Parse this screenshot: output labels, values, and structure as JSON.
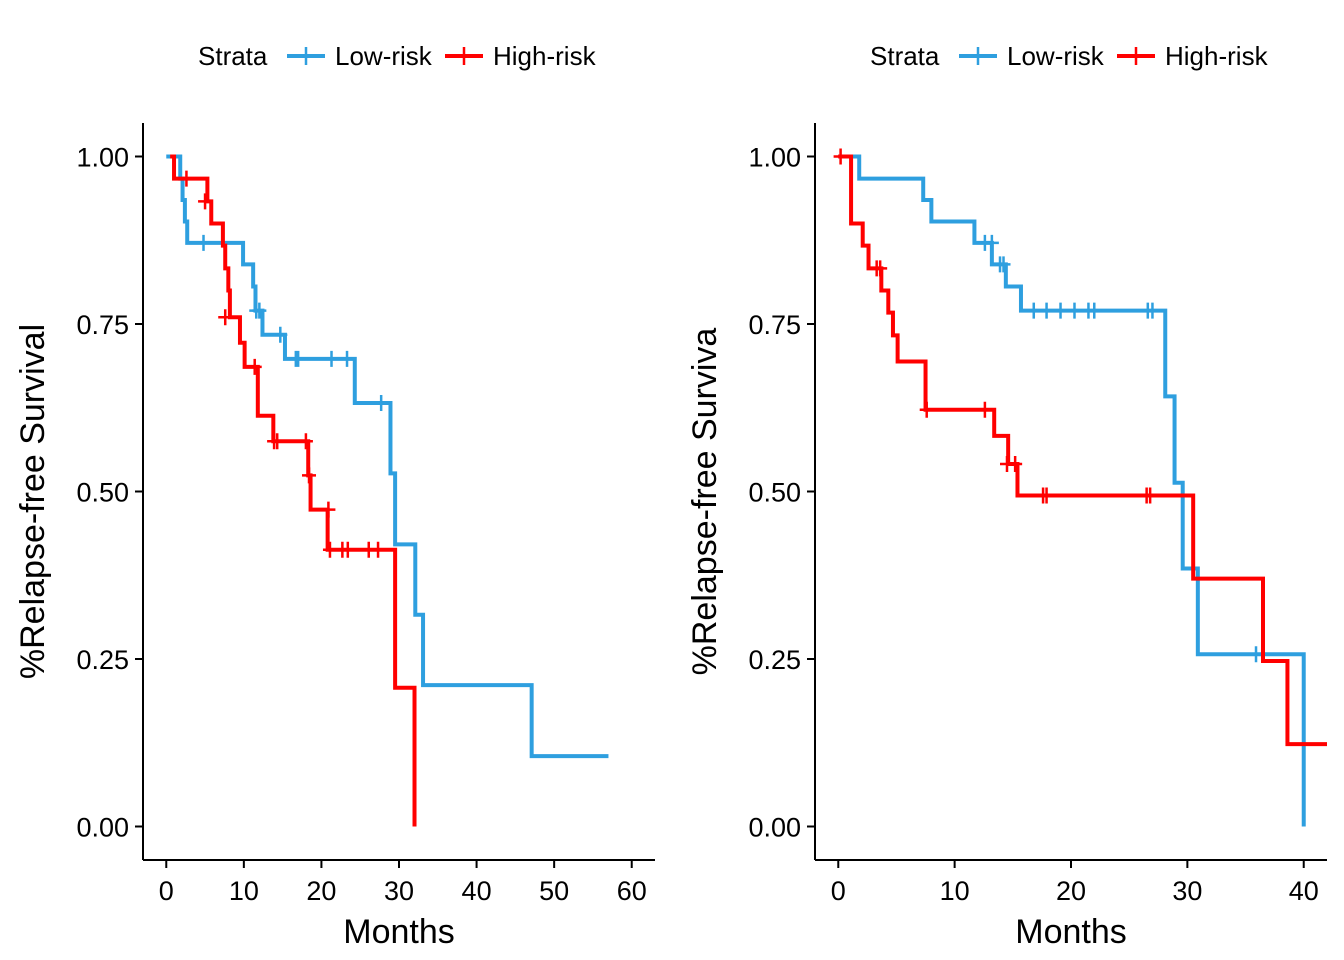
{
  "colors": {
    "low": "#2e9fdf",
    "high": "#ff0000"
  },
  "chart_data": [
    {
      "type": "line",
      "xlabel": "Months",
      "ylabel": "%Relapse-free Survival",
      "xlim": [
        -3,
        63
      ],
      "ylim": [
        -0.05,
        1.05
      ],
      "xticks": [
        "0",
        "10",
        "20",
        "30",
        "40",
        "50",
        "60"
      ],
      "yticks": [
        "0.00",
        "0.25",
        "0.50",
        "0.75",
        "1.00"
      ],
      "legend": {
        "title": "Strata",
        "position": "top",
        "labels": [
          "Low-risk",
          "High-risk"
        ]
      },
      "grid": false,
      "series": [
        {
          "name": "Low-risk",
          "steps": [
            [
              0,
              1.0
            ],
            [
              1.8,
              0.967
            ],
            [
              2.1,
              0.935
            ],
            [
              2.4,
              0.903
            ],
            [
              2.7,
              0.871
            ],
            [
              9.9,
              0.839
            ],
            [
              11.2,
              0.806
            ],
            [
              11.5,
              0.77
            ],
            [
              12.4,
              0.734
            ],
            [
              15.3,
              0.698
            ],
            [
              24.3,
              0.632
            ],
            [
              28.9,
              0.527
            ],
            [
              29.5,
              0.421
            ],
            [
              32.1,
              0.316
            ],
            [
              33.1,
              0.211
            ],
            [
              47.1,
              0.105
            ],
            [
              57.0,
              0.105
            ]
          ],
          "censor": [
            [
              4.8,
              0.871
            ],
            [
              11.6,
              0.77
            ],
            [
              12.0,
              0.77
            ],
            [
              14.7,
              0.734
            ],
            [
              16.7,
              0.698
            ],
            [
              17.0,
              0.698
            ],
            [
              21.3,
              0.698
            ],
            [
              23.3,
              0.698
            ],
            [
              27.7,
              0.632
            ]
          ]
        },
        {
          "name": "High-risk",
          "steps": [
            [
              0.5,
              1.0
            ],
            [
              1.0,
              0.967
            ],
            [
              5.3,
              0.933
            ],
            [
              5.8,
              0.9
            ],
            [
              7.3,
              0.867
            ],
            [
              7.6,
              0.833
            ],
            [
              8.0,
              0.8
            ],
            [
              8.2,
              0.76
            ],
            [
              9.5,
              0.722
            ],
            [
              10.1,
              0.686
            ],
            [
              11.8,
              0.613
            ],
            [
              13.8,
              0.575
            ],
            [
              18.3,
              0.524
            ],
            [
              18.6,
              0.473
            ],
            [
              20.8,
              0.413
            ],
            [
              29.5,
              0.207
            ],
            [
              32.0,
              0.0
            ]
          ],
          "censor": [
            [
              2.6,
              0.967
            ],
            [
              5.0,
              0.933
            ],
            [
              7.6,
              0.76
            ],
            [
              11.4,
              0.686
            ],
            [
              13.9,
              0.575
            ],
            [
              14.3,
              0.575
            ],
            [
              18.0,
              0.575
            ],
            [
              18.4,
              0.524
            ],
            [
              20.9,
              0.473
            ],
            [
              21.1,
              0.413
            ],
            [
              22.7,
              0.413
            ],
            [
              23.4,
              0.413
            ],
            [
              26.1,
              0.413
            ],
            [
              27.3,
              0.413
            ]
          ]
        }
      ]
    },
    {
      "type": "line",
      "xlabel": "Months",
      "ylabel": "%Relapse-free Surviva",
      "xlim": [
        -2,
        42
      ],
      "ylim": [
        -0.05,
        1.05
      ],
      "xticks": [
        "0",
        "10",
        "20",
        "30",
        "40"
      ],
      "yticks": [
        "0.00",
        "0.25",
        "0.50",
        "0.75",
        "1.00"
      ],
      "legend": {
        "title": "Strata",
        "position": "top",
        "labels": [
          "Low-risk",
          "High-risk"
        ]
      },
      "grid": false,
      "series": [
        {
          "name": "Low-risk",
          "steps": [
            [
              0,
              1.0
            ],
            [
              1.8,
              0.967
            ],
            [
              7.3,
              0.935
            ],
            [
              8.0,
              0.903
            ],
            [
              11.7,
              0.871
            ],
            [
              13.2,
              0.839
            ],
            [
              14.4,
              0.806
            ],
            [
              15.7,
              0.77
            ],
            [
              28.1,
              0.642
            ],
            [
              28.9,
              0.513
            ],
            [
              29.6,
              0.385
            ],
            [
              30.9,
              0.257
            ],
            [
              40.0,
              0.0
            ]
          ],
          "censor": [
            [
              12.6,
              0.871
            ],
            [
              13.2,
              0.871
            ],
            [
              13.9,
              0.839
            ],
            [
              14.2,
              0.839
            ],
            [
              16.8,
              0.77
            ],
            [
              17.9,
              0.77
            ],
            [
              19.1,
              0.77
            ],
            [
              20.3,
              0.77
            ],
            [
              21.5,
              0.77
            ],
            [
              22.0,
              0.77
            ],
            [
              26.6,
              0.77
            ],
            [
              27.0,
              0.77
            ],
            [
              35.9,
              0.257
            ]
          ]
        },
        {
          "name": "High-risk",
          "steps": [
            [
              0,
              1.0
            ],
            [
              1.1,
              0.9
            ],
            [
              2.1,
              0.867
            ],
            [
              2.6,
              0.833
            ],
            [
              3.7,
              0.8
            ],
            [
              4.3,
              0.767
            ],
            [
              4.7,
              0.733
            ],
            [
              5.1,
              0.694
            ],
            [
              7.5,
              0.622
            ],
            [
              13.4,
              0.583
            ],
            [
              14.6,
              0.541
            ],
            [
              15.4,
              0.494
            ],
            [
              30.5,
              0.37
            ],
            [
              36.5,
              0.247
            ],
            [
              38.6,
              0.123
            ],
            [
              42.0,
              0.123
            ]
          ],
          "censor": [
            [
              0.2,
              1.0
            ],
            [
              3.3,
              0.833
            ],
            [
              3.6,
              0.833
            ],
            [
              7.6,
              0.622
            ],
            [
              12.6,
              0.622
            ],
            [
              14.5,
              0.541
            ],
            [
              15.2,
              0.541
            ],
            [
              17.6,
              0.494
            ],
            [
              17.9,
              0.494
            ],
            [
              26.5,
              0.494
            ],
            [
              26.8,
              0.494
            ]
          ]
        }
      ]
    }
  ]
}
